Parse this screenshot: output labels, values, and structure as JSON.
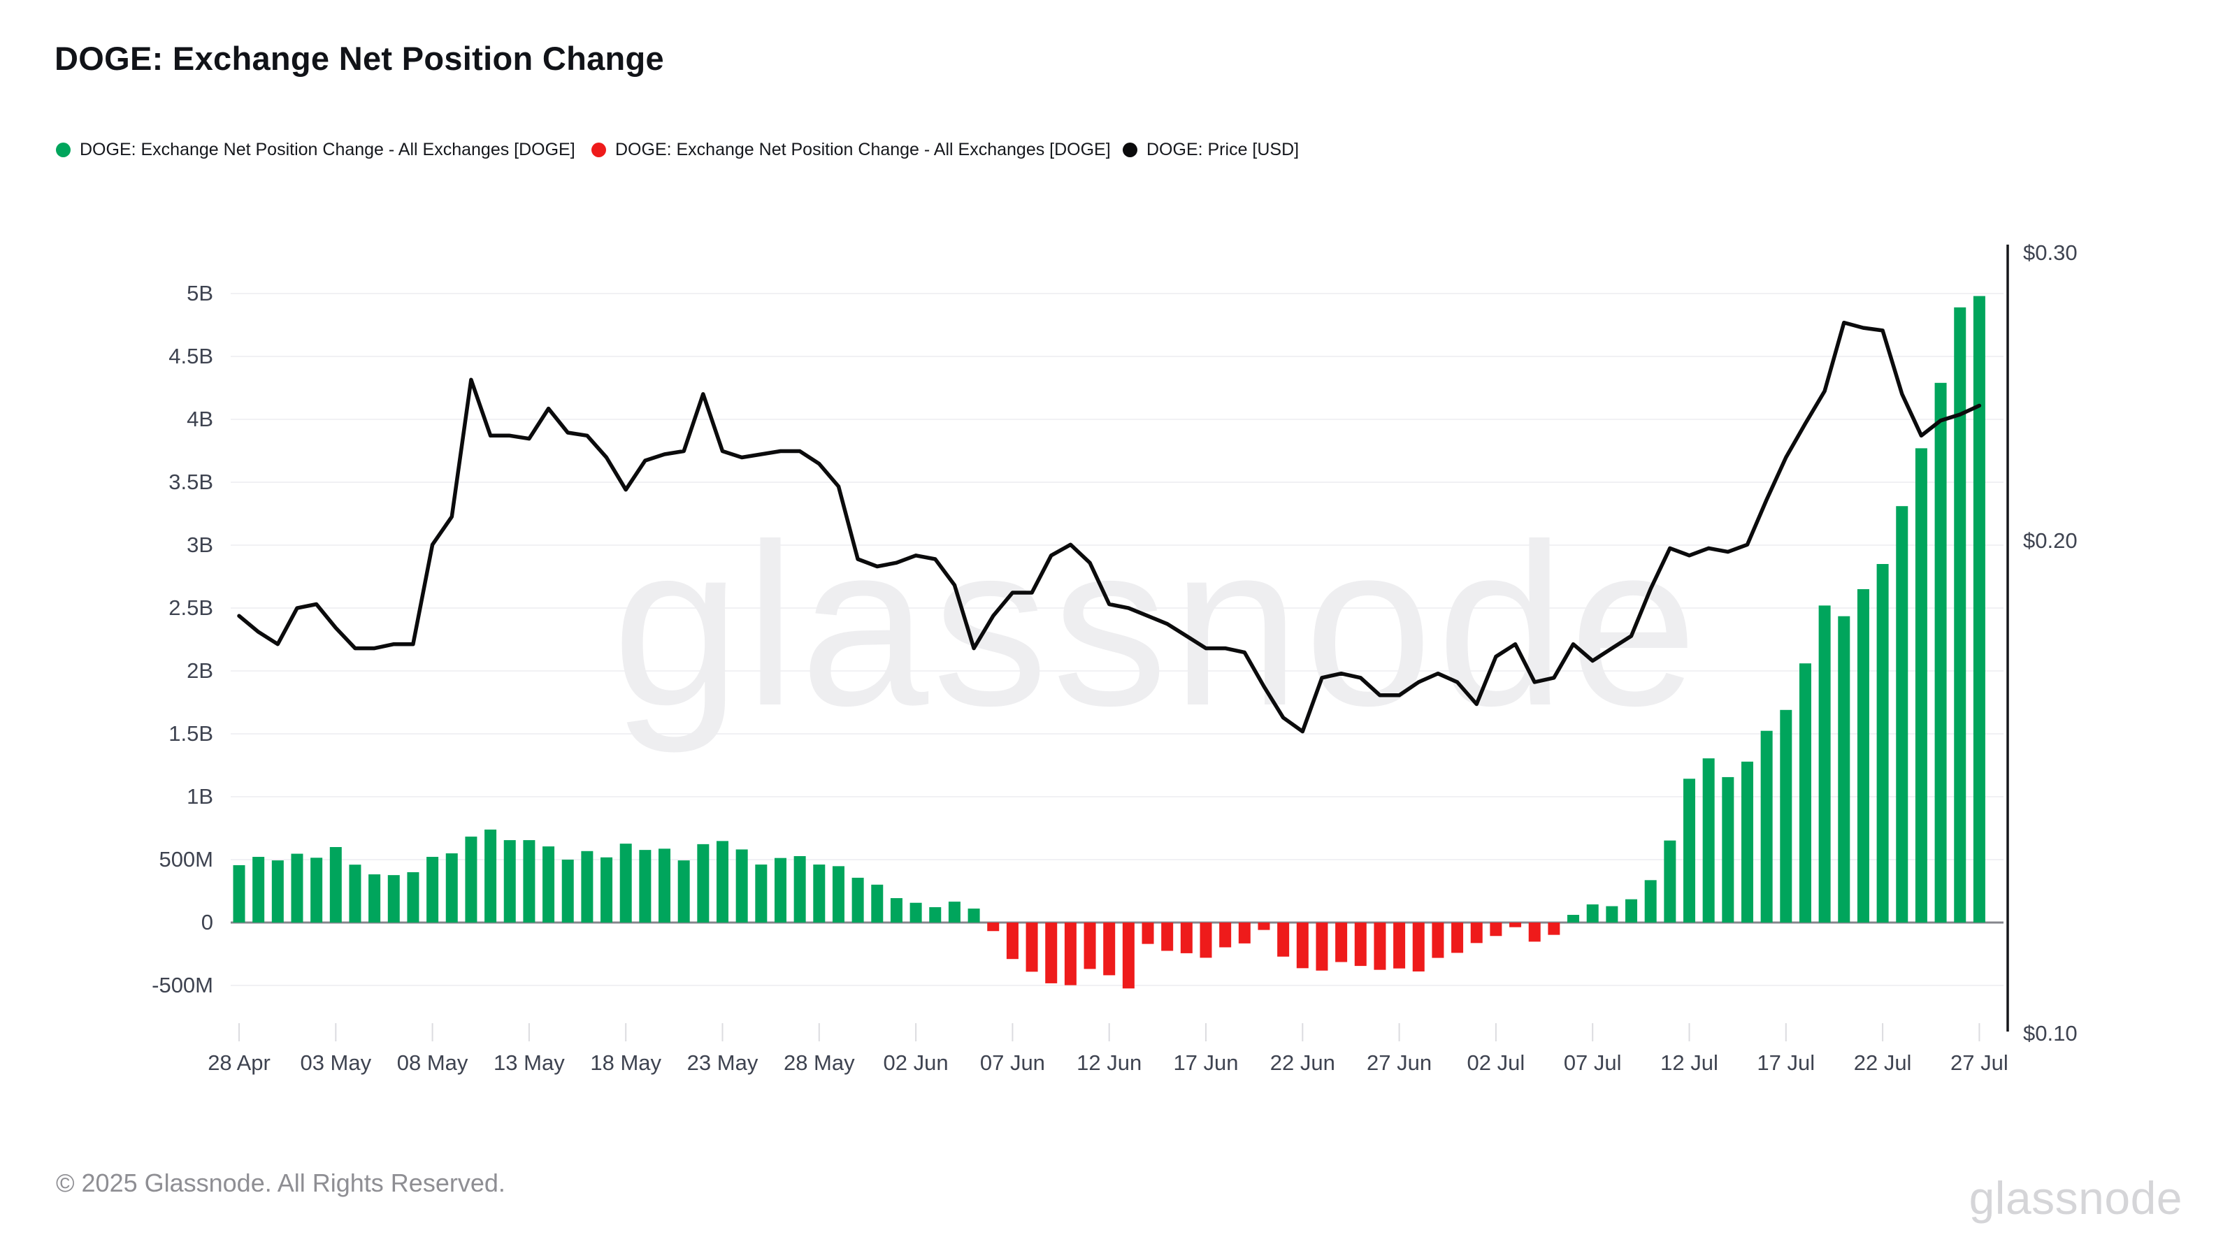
{
  "title": "DOGE: Exchange Net Position Change",
  "legend": [
    {
      "label": "DOGE: Exchange Net Position Change - All Exchanges [DOGE]",
      "marker_color": "#00A55C"
    },
    {
      "label": "DOGE: Exchange Net Position Change - All Exchanges [DOGE]",
      "marker_color": "#EE1B1B"
    },
    {
      "label": "DOGE: Price [USD]",
      "marker_color": "#0B0B0C"
    }
  ],
  "watermark": {
    "center": "glassnode",
    "footer_logo": "glassnode"
  },
  "footer": {
    "copyright": "© 2025 Glassnode. All Rights Reserved."
  },
  "colors": {
    "bar_positive": "#00A55C",
    "bar_negative": "#EE1B1B",
    "price_line": "#0B0B0C",
    "gridline": "#f1f1f4",
    "zero_line": "#85868c",
    "tick_mark": "#dcdce0",
    "axis_spine": "#15161a",
    "axis_text": "#3e4350"
  },
  "chart_data": {
    "type": "bar",
    "subtype": "bar+line dual-axis, daily",
    "x_range": [
      "28 Apr",
      "27 Jul"
    ],
    "x_tick_labels": [
      "28 Apr",
      "03 May",
      "08 May",
      "13 May",
      "18 May",
      "23 May",
      "28 May",
      "02 Jun",
      "07 Jun",
      "12 Jun",
      "17 Jun",
      "22 Jun",
      "27 Jun",
      "02 Jul",
      "07 Jul",
      "12 Jul",
      "17 Jul",
      "22 Jul",
      "27 Jul"
    ],
    "dates": [
      "28 Apr",
      "29 Apr",
      "30 Apr",
      "01 May",
      "02 May",
      "03 May",
      "04 May",
      "05 May",
      "06 May",
      "07 May",
      "08 May",
      "09 May",
      "10 May",
      "11 May",
      "12 May",
      "13 May",
      "14 May",
      "15 May",
      "16 May",
      "17 May",
      "18 May",
      "19 May",
      "20 May",
      "21 May",
      "22 May",
      "23 May",
      "24 May",
      "25 May",
      "26 May",
      "27 May",
      "28 May",
      "29 May",
      "30 May",
      "31 May",
      "01 Jun",
      "02 Jun",
      "03 Jun",
      "04 Jun",
      "05 Jun",
      "06 Jun",
      "07 Jun",
      "08 Jun",
      "09 Jun",
      "10 Jun",
      "11 Jun",
      "12 Jun",
      "13 Jun",
      "14 Jun",
      "15 Jun",
      "16 Jun",
      "17 Jun",
      "18 Jun",
      "19 Jun",
      "20 Jun",
      "21 Jun",
      "22 Jun",
      "23 Jun",
      "24 Jun",
      "25 Jun",
      "26 Jun",
      "27 Jun",
      "28 Jun",
      "29 Jun",
      "30 Jun",
      "01 Jul",
      "02 Jul",
      "03 Jul",
      "04 Jul",
      "05 Jul",
      "06 Jul",
      "07 Jul",
      "08 Jul",
      "09 Jul",
      "10 Jul",
      "11 Jul",
      "12 Jul",
      "13 Jul",
      "14 Jul",
      "15 Jul",
      "16 Jul",
      "17 Jul",
      "18 Jul",
      "19 Jul",
      "20 Jul",
      "21 Jul",
      "22 Jul",
      "23 Jul",
      "24 Jul",
      "25 Jul",
      "26 Jul",
      "27 Jul"
    ],
    "series": [
      {
        "name": "DOGE: Exchange Net Position Change - All Exchanges [DOGE]",
        "type": "bar",
        "axis": "left",
        "unit": "DOGE (millions)",
        "values_millions": [
          456,
          522,
          494,
          547,
          515,
          600,
          460,
          383,
          377,
          400,
          522,
          550,
          683,
          739,
          655,
          655,
          605,
          500,
          568,
          518,
          627,
          577,
          587,
          494,
          623,
          648,
          581,
          461,
          513,
          528,
          461,
          448,
          356,
          301,
          194,
          157,
          122,
          166,
          111,
          -68,
          -290,
          -391,
          -483,
          -498,
          -369,
          -419,
          -524,
          -170,
          -225,
          -244,
          -280,
          -197,
          -166,
          -59,
          -271,
          -363,
          -382,
          -314,
          -345,
          -376,
          -365,
          -389,
          -281,
          -241,
          -163,
          -107,
          -37,
          -152,
          -98,
          61,
          144,
          130,
          185,
          337,
          652,
          1143,
          1305,
          1156,
          1279,
          1524,
          1690,
          2060,
          2520,
          2435,
          2650,
          2850,
          3310,
          3770,
          4290,
          4890,
          4980
        ]
      },
      {
        "name": "DOGE: Price [USD]",
        "type": "line",
        "axis": "right",
        "unit": "USD",
        "values_usd": [
          0.18,
          0.176,
          0.173,
          0.182,
          0.183,
          0.177,
          0.172,
          0.172,
          0.173,
          0.173,
          0.199,
          0.207,
          0.251,
          0.232,
          0.232,
          0.231,
          0.241,
          0.233,
          0.232,
          0.225,
          0.215,
          0.224,
          0.226,
          0.227,
          0.246,
          0.227,
          0.225,
          0.226,
          0.227,
          0.227,
          0.223,
          0.216,
          0.195,
          0.193,
          0.194,
          0.196,
          0.195,
          0.188,
          0.172,
          0.18,
          0.186,
          0.186,
          0.196,
          0.199,
          0.194,
          0.183,
          0.182,
          0.18,
          0.178,
          0.175,
          0.172,
          0.172,
          0.171,
          0.163,
          0.156,
          0.153,
          0.165,
          0.166,
          0.165,
          0.161,
          0.161,
          0.164,
          0.166,
          0.164,
          0.159,
          0.17,
          0.173,
          0.164,
          0.165,
          0.173,
          0.169,
          0.172,
          0.175,
          0.187,
          0.198,
          0.196,
          0.198,
          0.197,
          0.199,
          0.212,
          0.225,
          0.236,
          0.247,
          0.272,
          0.27,
          0.269,
          0.246,
          0.232,
          0.237,
          0.239,
          0.242
        ]
      }
    ],
    "left_axis": {
      "tick_labels": [
        "5B",
        "4.5B",
        "4B",
        "3.5B",
        "3B",
        "2.5B",
        "2B",
        "1.5B",
        "1B",
        "500M",
        "0",
        "-500M"
      ],
      "tick_values_millions": [
        5000,
        4500,
        4000,
        3500,
        3000,
        2500,
        2000,
        1500,
        1000,
        500,
        0,
        -500
      ],
      "range_millions": [
        -500,
        5000
      ],
      "scale": "linear"
    },
    "right_axis": {
      "tick_labels": [
        "$0.30",
        "$0.20",
        "$0.10"
      ],
      "tick_values_usd": [
        0.3,
        0.2,
        0.1
      ],
      "range_usd": [
        0.1,
        0.3
      ],
      "scale": "log"
    },
    "grid": "horizontal only",
    "legend_position": "top-left"
  }
}
